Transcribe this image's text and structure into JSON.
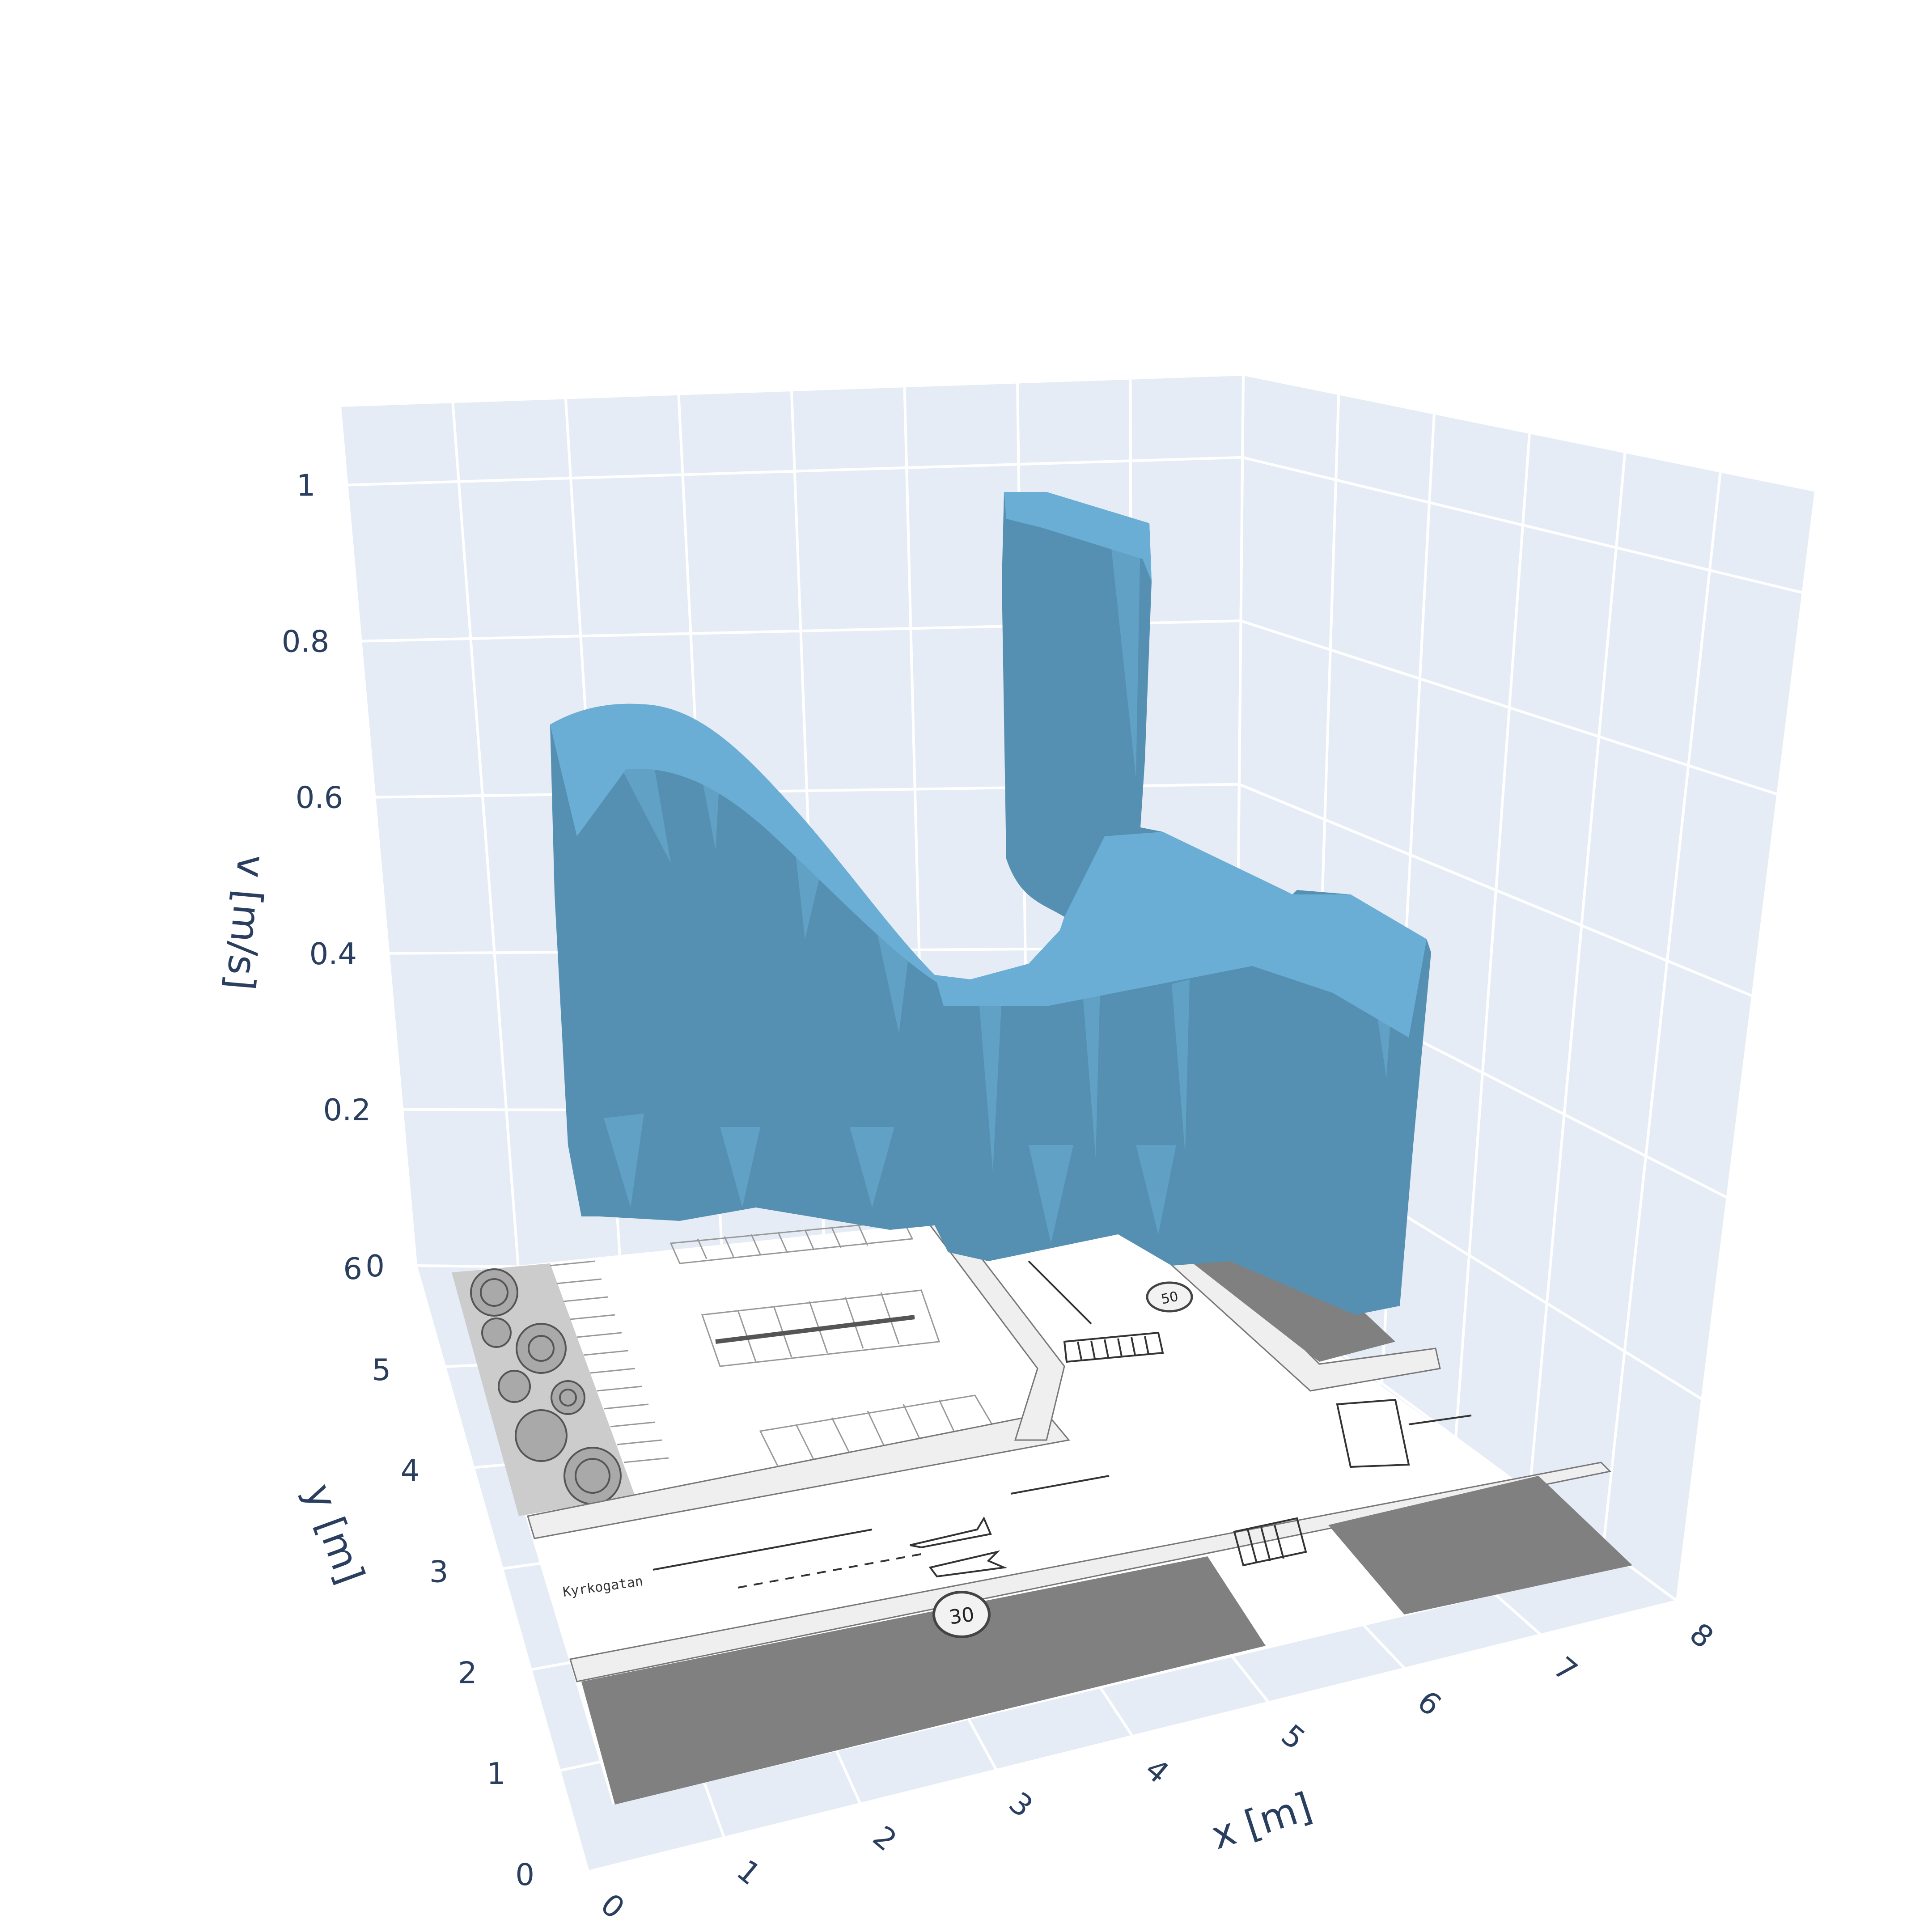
{
  "chart_data": {
    "type": "3d-surface",
    "xlabel": "x [m]",
    "ylabel": "y [m]",
    "zlabel": "v [m/s]",
    "xlim": [
      0,
      8
    ],
    "ylim": [
      0,
      6
    ],
    "zlim": [
      0,
      1.1
    ],
    "x_ticks": [
      "0",
      "1",
      "2",
      "3",
      "4",
      "5",
      "6",
      "7",
      "8"
    ],
    "y_ticks": [
      "0",
      "1",
      "2",
      "3",
      "4",
      "5",
      "6"
    ],
    "z_ticks": [
      "0",
      "0.2",
      "0.4",
      "0.6",
      "0.8",
      "1"
    ],
    "grid": true,
    "surface_color": "#6aaed6",
    "surface_color_shade": "#5590b2",
    "pane_color": "#e5ecf6",
    "approx_profile": [
      {
        "x": 0.6,
        "v": 0.72
      },
      {
        "x": 1.5,
        "v": 0.62
      },
      {
        "x": 2.5,
        "v": 0.45
      },
      {
        "x": 3.5,
        "v": 0.36
      },
      {
        "x": 4.5,
        "v": 0.4
      },
      {
        "x": 5.2,
        "v": 0.42
      },
      {
        "x": 5.5,
        "v": 1.05
      },
      {
        "x": 6.5,
        "v": 0.45
      },
      {
        "x": 7.5,
        "v": 0.35
      }
    ]
  },
  "map_labels": {
    "street_name": "Kyrkogatan",
    "speed_limit_south": "30",
    "speed_limit_north": "50"
  },
  "colors": {
    "tick": "#2a3f5f",
    "grid": "#ffffff",
    "building": "#808080",
    "sidewalk": "#efefef",
    "park": "#cccccc"
  }
}
